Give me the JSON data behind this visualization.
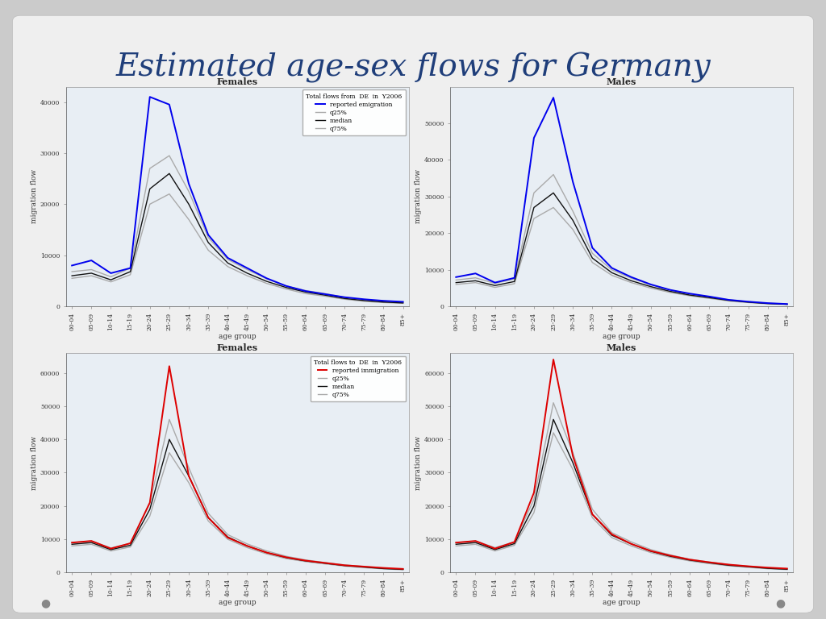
{
  "title": "Estimated age-sex flows for Germany",
  "title_color": "#1F3E7A",
  "slide_bg_top": "#C8C8C8",
  "slide_bg_bottom": "#D8D8D8",
  "plot_bg": "#E8EEF4",
  "white_box_bg": "#F2F2F2",
  "age_groups": [
    "00-04",
    "05-09",
    "10-14",
    "15-19",
    "20-24",
    "25-29",
    "30-34",
    "35-39",
    "40-44",
    "45-49",
    "50-54",
    "55-59",
    "60-64",
    "65-69",
    "70-74",
    "75-79",
    "80-84",
    "85+"
  ],
  "emigration_female_reported": [
    8000,
    9000,
    6500,
    7500,
    41000,
    39500,
    24000,
    14000,
    9500,
    7500,
    5500,
    4000,
    3000,
    2400,
    1800,
    1400,
    1100,
    900
  ],
  "emigration_female_q25": [
    5500,
    6000,
    4800,
    6200,
    20000,
    22000,
    17000,
    11000,
    7800,
    6000,
    4500,
    3400,
    2500,
    2000,
    1400,
    1000,
    750,
    600
  ],
  "emigration_female_median": [
    6000,
    6500,
    5200,
    6800,
    23000,
    26000,
    20000,
    12500,
    8500,
    6500,
    4900,
    3700,
    2800,
    2200,
    1550,
    1150,
    850,
    680
  ],
  "emigration_female_q75": [
    6800,
    7200,
    5800,
    7500,
    27000,
    29500,
    22500,
    13500,
    9200,
    7200,
    5400,
    4000,
    3100,
    2500,
    1750,
    1300,
    950,
    750
  ],
  "emigration_male_reported": [
    8000,
    9000,
    6500,
    7800,
    46000,
    57000,
    34000,
    16000,
    10500,
    8000,
    6000,
    4500,
    3500,
    2700,
    1800,
    1300,
    900,
    650
  ],
  "emigration_male_q25": [
    6000,
    6500,
    5200,
    6200,
    24000,
    27000,
    21000,
    12000,
    8500,
    6500,
    5000,
    3800,
    2900,
    2200,
    1500,
    1050,
    700,
    520
  ],
  "emigration_male_median": [
    6500,
    7000,
    5700,
    6800,
    27000,
    31000,
    23500,
    13200,
    9200,
    7000,
    5400,
    4100,
    3100,
    2400,
    1650,
    1150,
    780,
    580
  ],
  "emigration_male_q75": [
    7200,
    7800,
    6300,
    7500,
    31000,
    36000,
    26000,
    14500,
    10000,
    7700,
    5900,
    4500,
    3400,
    2600,
    1800,
    1280,
    860,
    640
  ],
  "immigration_female_reported": [
    9000,
    9500,
    7200,
    8800,
    21000,
    62000,
    29000,
    16500,
    10500,
    8000,
    6000,
    4600,
    3600,
    2900,
    2200,
    1800,
    1400,
    1100
  ],
  "immigration_female_q25": [
    8000,
    8500,
    6500,
    7700,
    17000,
    36000,
    27000,
    15500,
    10000,
    7500,
    5600,
    4200,
    3300,
    2600,
    1950,
    1500,
    1100,
    850
  ],
  "immigration_female_median": [
    8500,
    9000,
    6900,
    8200,
    19000,
    40000,
    29000,
    16500,
    10700,
    8000,
    6000,
    4500,
    3500,
    2800,
    2100,
    1650,
    1200,
    950
  ],
  "immigration_female_q75": [
    9000,
    9500,
    7400,
    8800,
    21000,
    46000,
    31500,
    17800,
    11400,
    8600,
    6500,
    4900,
    3800,
    3000,
    2300,
    1800,
    1300,
    1030
  ],
  "immigration_male_reported": [
    9000,
    9500,
    7200,
    9200,
    24000,
    64000,
    35000,
    17500,
    11500,
    8600,
    6500,
    5100,
    3900,
    3100,
    2400,
    1900,
    1500,
    1200
  ],
  "immigration_male_q25": [
    8000,
    8500,
    6500,
    8200,
    18000,
    42000,
    31000,
    16500,
    10500,
    8000,
    6000,
    4600,
    3500,
    2700,
    2050,
    1600,
    1150,
    900
  ],
  "immigration_male_median": [
    8500,
    9000,
    6900,
    8700,
    20000,
    46000,
    33000,
    17500,
    11200,
    8600,
    6400,
    4900,
    3750,
    2950,
    2200,
    1750,
    1280,
    990
  ],
  "immigration_male_q75": [
    9000,
    9500,
    7500,
    9200,
    22000,
    51000,
    36000,
    19000,
    12000,
    9200,
    6900,
    5300,
    4000,
    3150,
    2400,
    1900,
    1400,
    1080
  ],
  "legend_emigration_title": "Total flows from  DE  in  Y2006",
  "legend_immigration_title": "Total flows to  DE  in  Y2006",
  "legend_reported_emigration": "reported emigration",
  "legend_reported_immigration": "reported immigration",
  "legend_q25": "q25%",
  "legend_median": "median",
  "legend_q75": "q75%",
  "ylabel": "migration flow",
  "xlabel": "age group",
  "subplot_titles": [
    "Females",
    "Males",
    "Females",
    "Males"
  ],
  "emigration_female_yticks": [
    0,
    10000,
    20000,
    30000,
    40000
  ],
  "emigration_male_yticks": [
    0,
    10000,
    20000,
    30000,
    40000,
    50000
  ],
  "immigration_yticks": [
    0,
    10000,
    20000,
    30000,
    40000,
    50000,
    60000
  ],
  "line_blue": "#0000EE",
  "line_red": "#DD0000",
  "line_black": "#111111",
  "line_gray": "#888888",
  "line_lightgray": "#AAAAAA"
}
